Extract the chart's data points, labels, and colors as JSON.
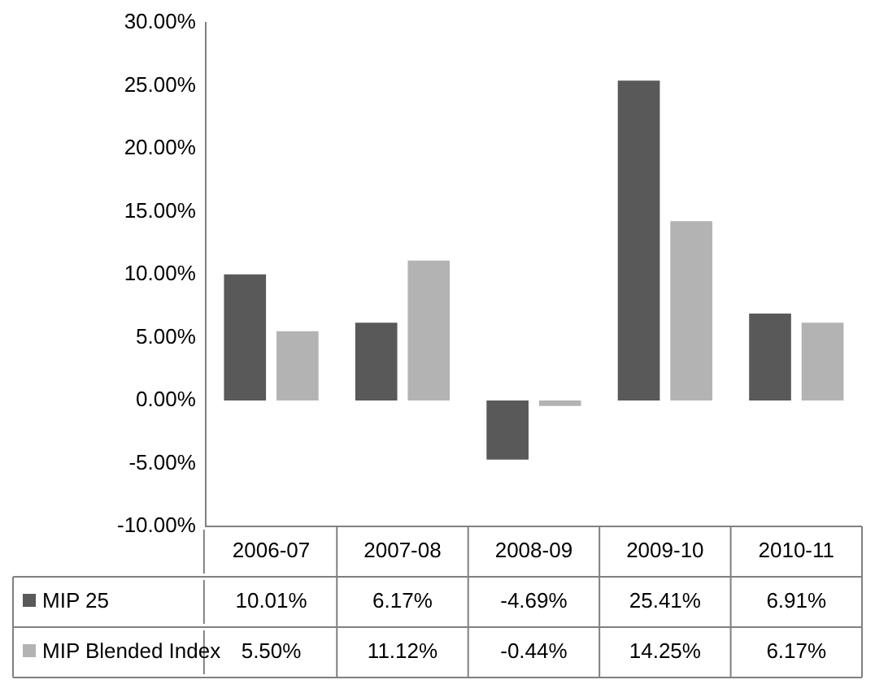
{
  "chart_data": {
    "type": "bar",
    "categories": [
      "2006-07",
      "2007-08",
      "2008-09",
      "2009-10",
      "2010-11"
    ],
    "series": [
      {
        "name": "MIP 25",
        "color": "#595959",
        "values": [
          10.01,
          6.17,
          -4.69,
          25.41,
          6.91
        ],
        "value_labels": [
          "10.01%",
          "6.17%",
          "-4.69%",
          "25.41%",
          "6.91%"
        ]
      },
      {
        "name": "MIP Blended Index",
        "color": "#b3b3b3",
        "values": [
          5.5,
          11.12,
          -0.44,
          14.25,
          6.17
        ],
        "value_labels": [
          "5.50%",
          "11.12%",
          "-0.44%",
          "14.25%",
          "6.17%"
        ]
      }
    ],
    "ylim": [
      -10,
      30
    ],
    "yticks": [
      {
        "value": -10,
        "label": "-10.00%"
      },
      {
        "value": -5,
        "label": "-5.00%"
      },
      {
        "value": 0,
        "label": "0.00%"
      },
      {
        "value": 5,
        "label": "5.00%"
      },
      {
        "value": 10,
        "label": "10.00%"
      },
      {
        "value": 15,
        "label": "15.00%"
      },
      {
        "value": 20,
        "label": "20.00%"
      },
      {
        "value": 25,
        "label": "25.00%"
      },
      {
        "value": 30,
        "label": "30.00%"
      }
    ],
    "grid": false,
    "legend": "bottom left"
  }
}
